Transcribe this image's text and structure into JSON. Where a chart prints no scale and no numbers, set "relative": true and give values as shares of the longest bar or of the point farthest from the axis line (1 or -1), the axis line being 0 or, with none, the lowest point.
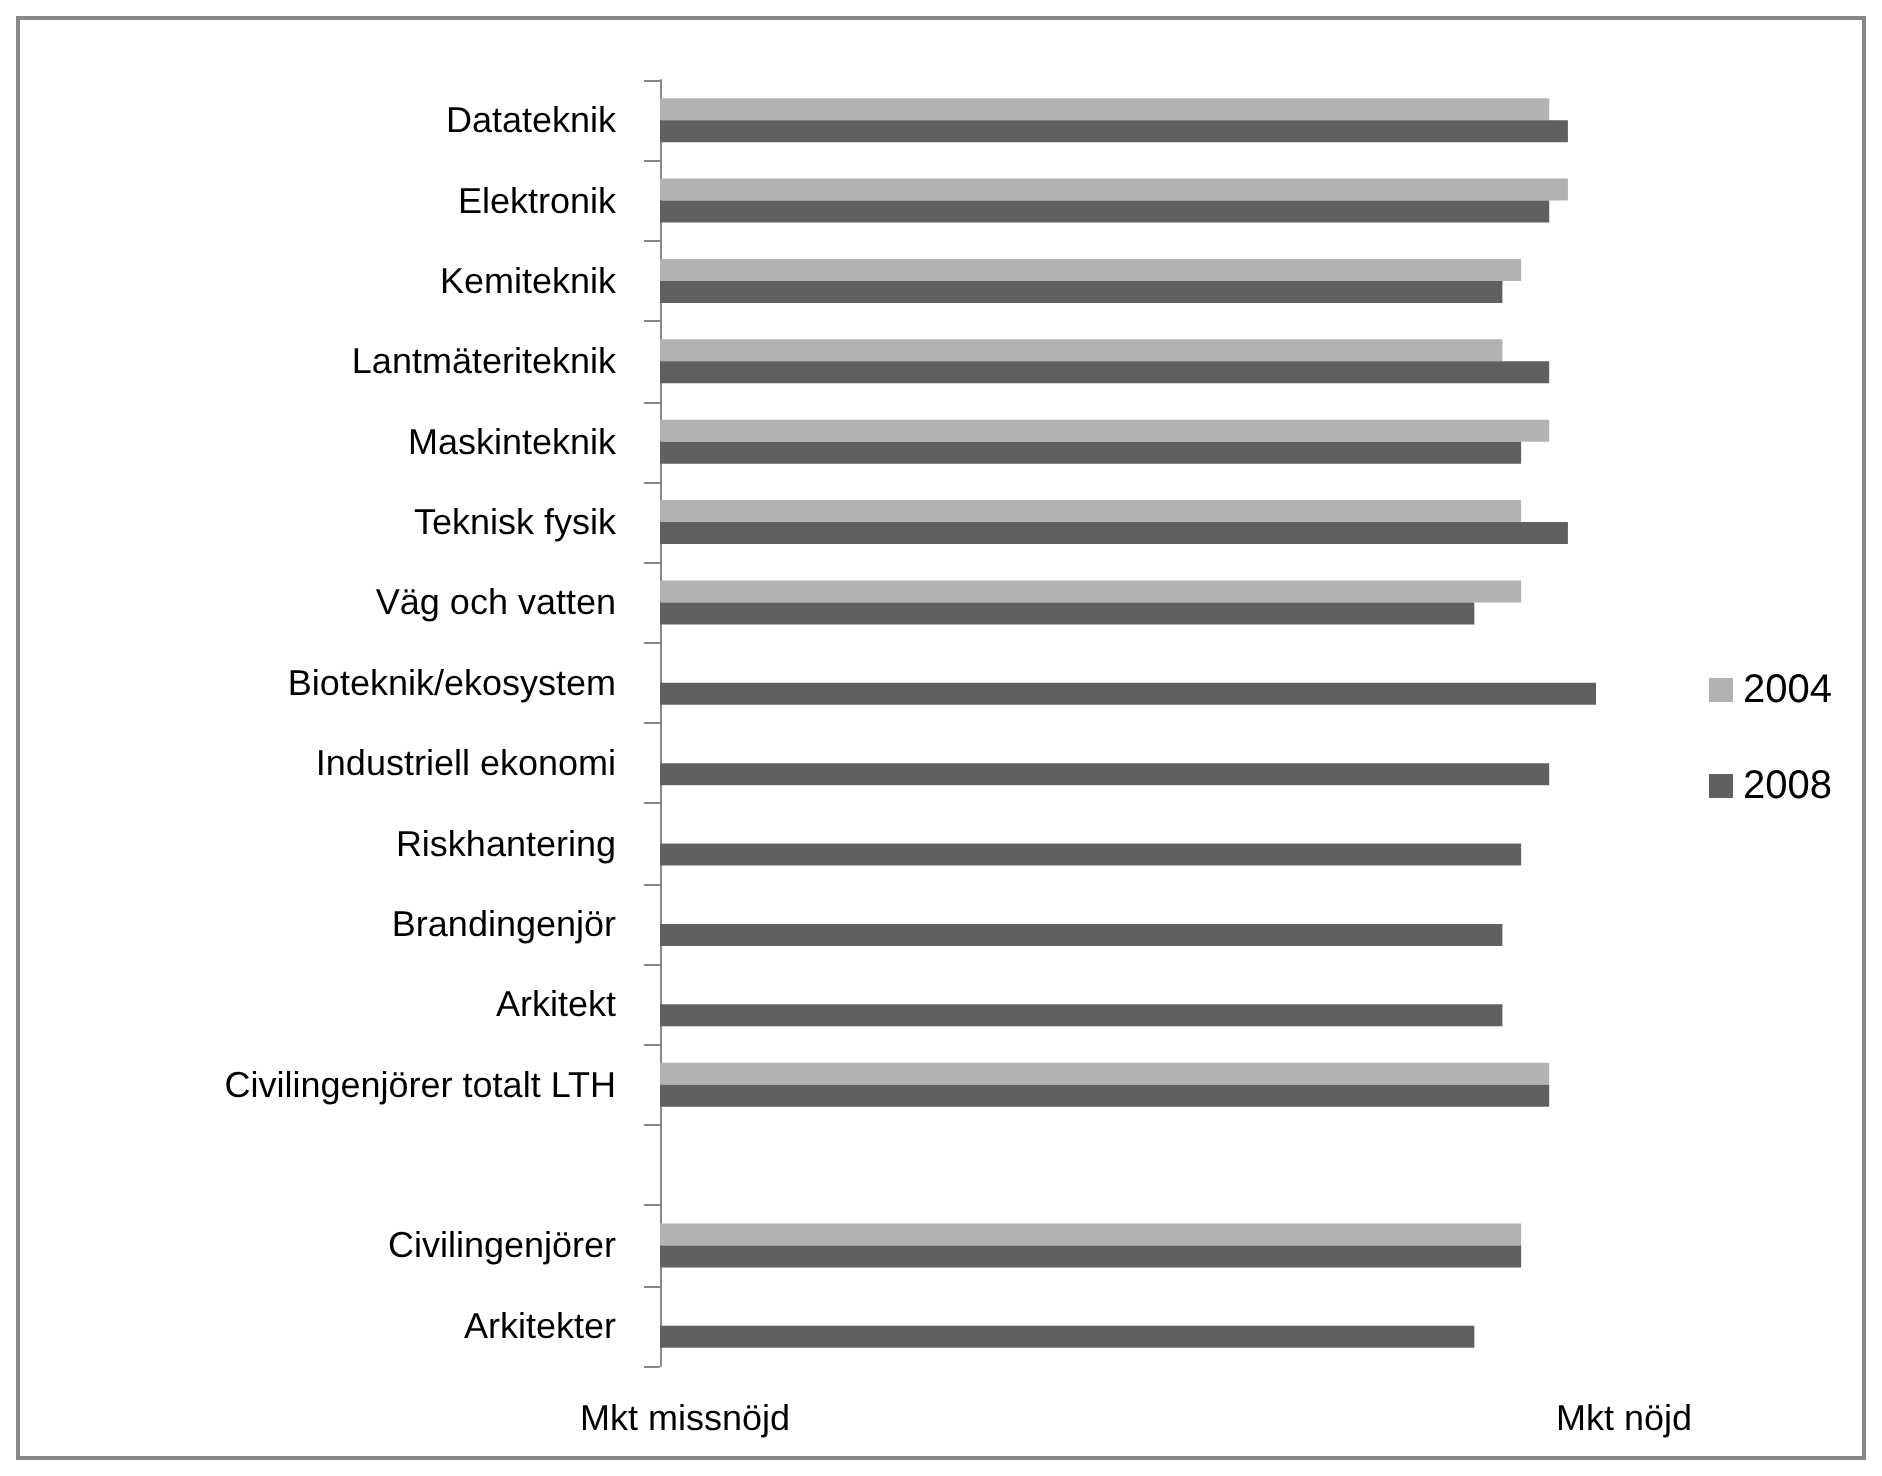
{
  "chart_data": {
    "type": "bar",
    "orientation": "horizontal",
    "relative": true,
    "categories": [
      "Datateknik",
      "Elektronik",
      "Kemiteknik",
      "Lantmäteriteknik",
      "Maskinteknik",
      "Teknisk fysik",
      "Väg och vatten",
      "Bioteknik/ekosystem",
      "Industriell ekonomi",
      "Riskhantering",
      "Brandingenjör",
      "Arkitekt",
      "Civilingenjörer totalt LTH",
      null,
      "Civilingenjörer",
      "Arkitekter"
    ],
    "series": [
      {
        "name": "2004",
        "color": "#b2b2b2",
        "values": [
          0.95,
          0.97,
          0.92,
          0.9,
          0.95,
          0.92,
          0.92,
          null,
          null,
          null,
          null,
          null,
          0.95,
          null,
          0.92,
          null
        ]
      },
      {
        "name": "2008",
        "color": "#606060",
        "values": [
          0.97,
          0.95,
          0.9,
          0.95,
          0.92,
          0.97,
          0.87,
          1,
          0.95,
          0.92,
          0.9,
          0.9,
          0.95,
          null,
          0.92,
          0.87
        ]
      }
    ],
    "annotations": [
      "Mkt missnöjd",
      "Mkt nöjd"
    ],
    "legend": "right"
  }
}
